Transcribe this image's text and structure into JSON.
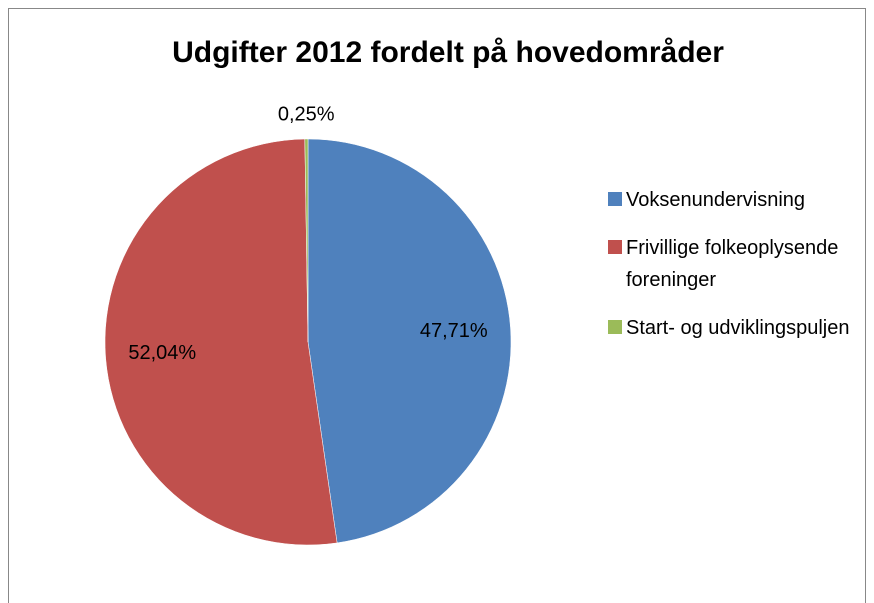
{
  "chart_data": {
    "type": "pie",
    "title": "Udgifter 2012 fordelt på hovedområder",
    "categories": [
      "Voksenundervisning",
      "Frivillige folkeoplysende foreninger",
      "Start- og udviklingspuljen"
    ],
    "values": [
      47.71,
      52.04,
      0.25
    ],
    "value_labels": [
      "47,71%",
      "52,04%",
      "0,25%"
    ],
    "colors": [
      "#4f81bd",
      "#c0504d",
      "#9bbb59"
    ],
    "legend": "right"
  }
}
